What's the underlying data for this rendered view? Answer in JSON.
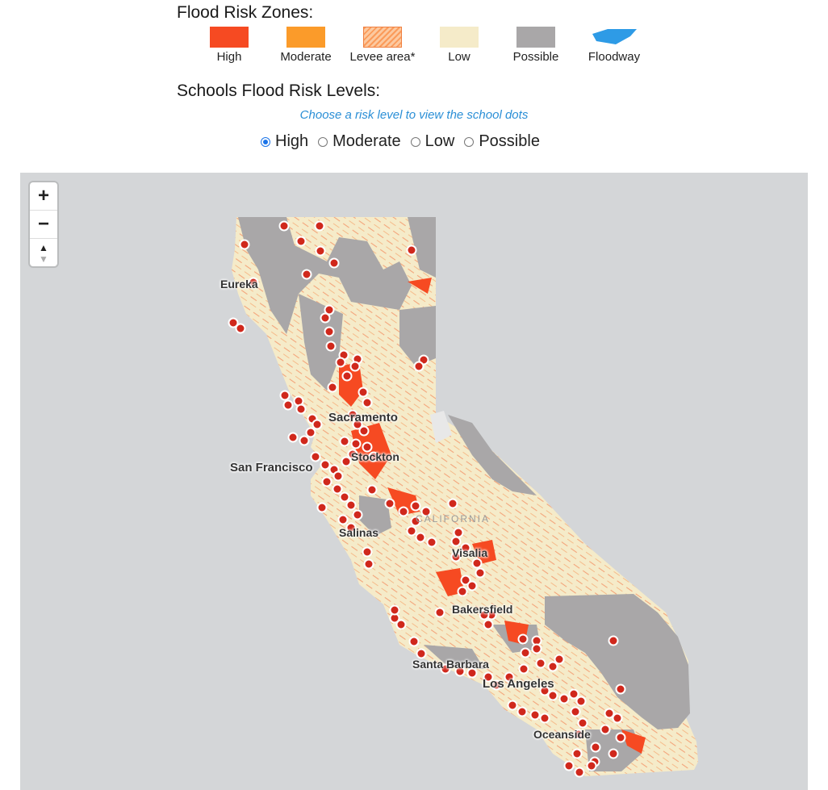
{
  "legend": {
    "title": "Flood Risk Zones:",
    "items": [
      {
        "label": "High",
        "color": "#f64a22",
        "icon": "solid-swatch"
      },
      {
        "label": "Moderate",
        "color": "#fb9b2a",
        "icon": "solid-swatch"
      },
      {
        "label": "Levee area*",
        "color": "#f9a873",
        "icon": "hatched-swatch"
      },
      {
        "label": "Low",
        "color": "#f5ebc9",
        "icon": "solid-swatch"
      },
      {
        "label": "Possible",
        "color": "#a9a7a8",
        "icon": "solid-swatch"
      },
      {
        "label": "Floodway",
        "color": "#2e9be6",
        "icon": "floodway-shape"
      }
    ]
  },
  "schools": {
    "title": "Schools Flood Risk Levels:",
    "hint": "Choose a risk level to view the school dots",
    "options": [
      {
        "label": "High",
        "selected": true
      },
      {
        "label": "Moderate",
        "selected": false
      },
      {
        "label": "Low",
        "selected": false
      },
      {
        "label": "Possible",
        "selected": false
      }
    ]
  },
  "map": {
    "controls": {
      "zoom_in": "+",
      "zoom_out": "−",
      "compass_icon": "compass-icon"
    },
    "state_label": "CALIFORNIA",
    "cities": [
      "Eureka",
      "Sacramento",
      "Stockton",
      "San Francisco",
      "Salinas",
      "Visalia",
      "Bakersfield",
      "Santa Barbara",
      "Los Angeles",
      "Oceanside"
    ],
    "colors": {
      "ocean": "#d4d6d8",
      "low": "#f5ebc9",
      "possible": "#a9a7a8",
      "high": "#f64a22",
      "school_dot": "#d0281c"
    }
  }
}
